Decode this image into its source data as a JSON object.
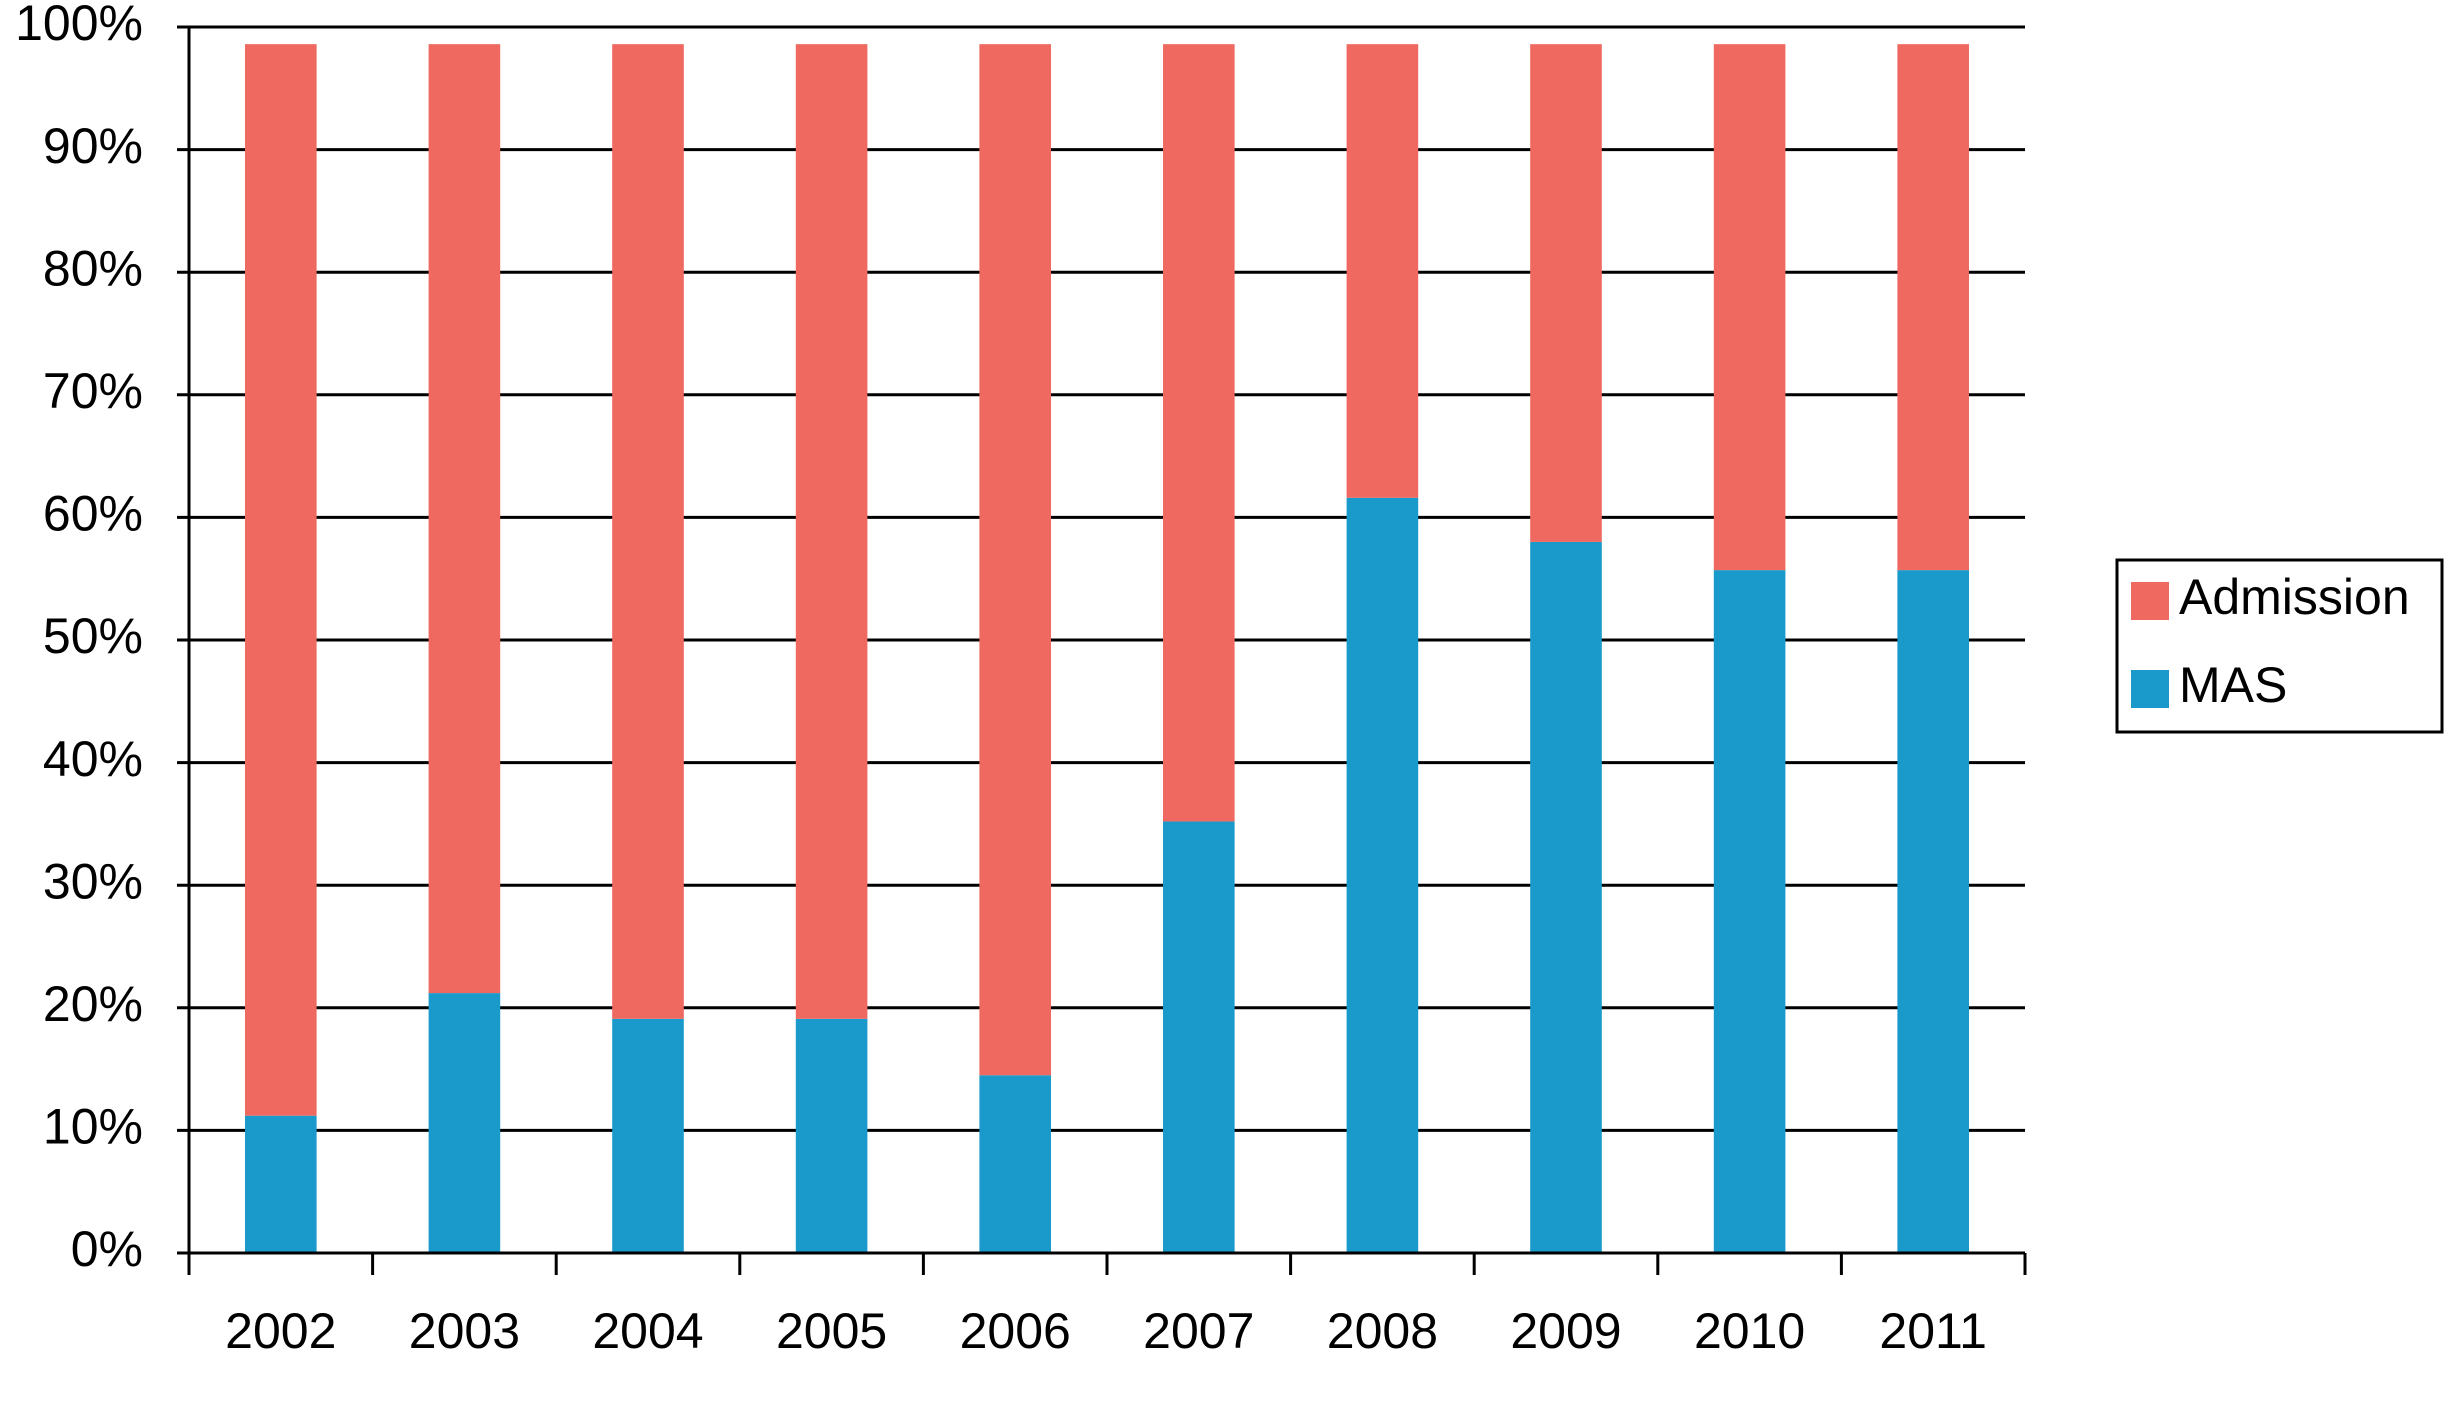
{
  "chart_data": {
    "type": "stacked_bar",
    "categories": [
      "2002",
      "2003",
      "2004",
      "2005",
      "2006",
      "2007",
      "2008",
      "2009",
      "2010",
      "2011"
    ],
    "series": [
      {
        "name": "MAS",
        "color": "#1a9acb",
        "values": [
          11.2,
          21.2,
          19.1,
          19.1,
          14.5,
          35.2,
          61.6,
          58.0,
          55.7,
          55.7
        ]
      },
      {
        "name": "Admission",
        "color": "#ef6960",
        "values": [
          87.4,
          77.4,
          79.5,
          79.5,
          84.1,
          63.4,
          37.0,
          40.6,
          42.9,
          42.9
        ]
      }
    ],
    "ylim": [
      0,
      100
    ],
    "yticks": [
      {
        "value": 0,
        "label": "0%"
      },
      {
        "value": 10,
        "label": "10%"
      },
      {
        "value": 20,
        "label": "20%"
      },
      {
        "value": 30,
        "label": "30%"
      },
      {
        "value": 40,
        "label": "40%"
      },
      {
        "value": 50,
        "label": "50%"
      },
      {
        "value": 60,
        "label": "60%"
      },
      {
        "value": 70,
        "label": "70%"
      },
      {
        "value": 80,
        "label": "80%"
      },
      {
        "value": 90,
        "label": "90%"
      },
      {
        "value": 100,
        "label": "100%"
      }
    ],
    "grid": true,
    "legend": "right"
  }
}
